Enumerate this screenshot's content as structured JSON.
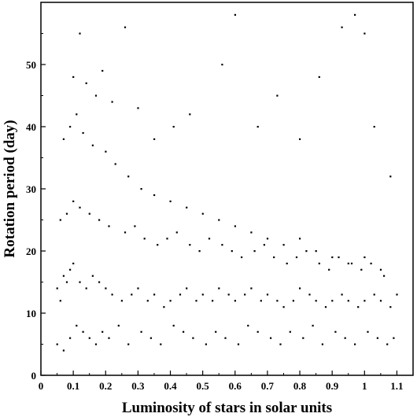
{
  "chart_data": {
    "type": "scatter",
    "title": "",
    "xlabel": "Luminosity of stars in solar units",
    "ylabel": "Rotation period (day)",
    "xlim": [
      0,
      1.15
    ],
    "ylim": [
      0,
      60
    ],
    "x_ticks": [
      "0",
      "0.1",
      "0.2",
      "0.3",
      "0.4",
      "0.5",
      "0.6",
      "0.7",
      "0.8",
      "0.9",
      "1",
      "1.1"
    ],
    "y_ticks": [
      "0",
      "10",
      "20",
      "30",
      "40",
      "50"
    ],
    "grid": false,
    "legend": "none",
    "point_color": "#000000",
    "series": [
      {
        "x": [
          0.05,
          0.06,
          0.07,
          0.08,
          0.09,
          0.1,
          0.12,
          0.14,
          0.16,
          0.18,
          0.2,
          0.22,
          0.25,
          0.28,
          0.3,
          0.33,
          0.35,
          0.38,
          0.4,
          0.43,
          0.45,
          0.48,
          0.5,
          0.53,
          0.55,
          0.58,
          0.6,
          0.63,
          0.65,
          0.68,
          0.7,
          0.73,
          0.75,
          0.78,
          0.8,
          0.83,
          0.85,
          0.88,
          0.9,
          0.93,
          0.95,
          0.98,
          1.0,
          1.03,
          1.05,
          1.08,
          1.1,
          0.05,
          0.07,
          0.09,
          0.11,
          0.13,
          0.15,
          0.17,
          0.19,
          0.21,
          0.24,
          0.27,
          0.31,
          0.34,
          0.37,
          0.41,
          0.44,
          0.47,
          0.51,
          0.54,
          0.57,
          0.61,
          0.64,
          0.67,
          0.71,
          0.74,
          0.77,
          0.81,
          0.84,
          0.87,
          0.91,
          0.94,
          0.97,
          1.01,
          1.04,
          1.07,
          1.09,
          0.06,
          0.08,
          0.1,
          0.12,
          0.15,
          0.18,
          0.21,
          0.26,
          0.29,
          0.32,
          0.36,
          0.39,
          0.42,
          0.46,
          0.49,
          0.52,
          0.56,
          0.59,
          0.62,
          0.66,
          0.69,
          0.72,
          0.76,
          0.79,
          0.82,
          0.86,
          0.89,
          0.92,
          0.96,
          0.99,
          1.02,
          1.06,
          0.07,
          0.09,
          0.11,
          0.13,
          0.16,
          0.2,
          0.23,
          0.27,
          0.31,
          0.35,
          0.4,
          0.45,
          0.5,
          0.55,
          0.6,
          0.65,
          0.7,
          0.75,
          0.8,
          0.85,
          0.9,
          0.95,
          1.0,
          1.05,
          0.1,
          0.12,
          0.14,
          0.17,
          0.19,
          0.22,
          0.26,
          0.3,
          0.35,
          0.41,
          0.46,
          0.56,
          0.6,
          0.67,
          0.73,
          0.8,
          0.86,
          0.93,
          0.97,
          1.0,
          1.03,
          1.08
        ],
        "y": [
          14,
          12,
          16,
          15,
          17,
          18,
          15,
          14,
          16,
          15,
          14,
          13,
          12,
          13,
          14,
          12,
          13,
          11,
          12,
          13,
          14,
          12,
          13,
          12,
          14,
          13,
          12,
          13,
          14,
          12,
          13,
          12,
          11,
          12,
          14,
          13,
          12,
          11,
          12,
          13,
          12,
          11,
          12,
          13,
          12,
          11,
          13,
          5,
          4,
          6,
          8,
          7,
          6,
          5,
          7,
          6,
          8,
          5,
          7,
          6,
          5,
          8,
          7,
          6,
          5,
          7,
          6,
          5,
          8,
          7,
          6,
          5,
          7,
          6,
          8,
          5,
          7,
          6,
          5,
          7,
          6,
          5,
          6,
          25,
          26,
          28,
          27,
          26,
          25,
          24,
          23,
          24,
          22,
          21,
          22,
          23,
          21,
          20,
          22,
          21,
          20,
          19,
          20,
          21,
          19,
          18,
          19,
          20,
          18,
          17,
          19,
          18,
          17,
          18,
          16,
          38,
          40,
          42,
          39,
          37,
          36,
          34,
          32,
          30,
          29,
          28,
          27,
          26,
          25,
          24,
          23,
          22,
          21,
          22,
          20,
          19,
          18,
          19,
          17,
          48,
          55,
          47,
          45,
          49,
          44,
          56,
          43,
          38,
          40,
          42,
          50,
          58,
          40,
          45,
          38,
          48,
          56,
          58,
          55,
          40,
          32
        ]
      }
    ]
  }
}
